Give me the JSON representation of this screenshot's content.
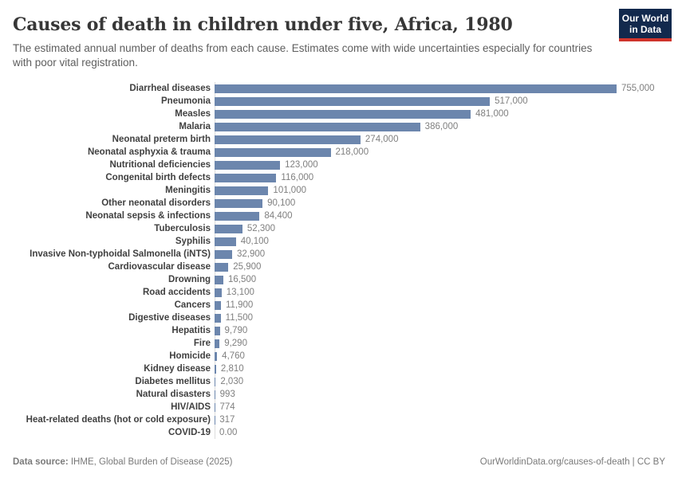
{
  "header": {
    "title": "Causes of death in children under five, Africa, 1980",
    "subtitle": "The estimated annual number of deaths from each cause. Estimates come with wide uncertainties especially for countries with poor vital registration."
  },
  "logo": {
    "line1": "Our World",
    "line2": "in Data",
    "bg_color": "#12294d",
    "accent_color": "#d0342c"
  },
  "chart_data": {
    "type": "bar",
    "orientation": "horizontal",
    "title": "Causes of death in children under five, Africa, 1980",
    "xlabel": "",
    "ylabel": "",
    "xlim": [
      0,
      755000
    ],
    "grid": false,
    "legend": false,
    "bar_color": "#6c86ad",
    "categories": [
      "Diarrheal diseases",
      "Pneumonia",
      "Measles",
      "Malaria",
      "Neonatal preterm birth",
      "Neonatal asphyxia & trauma",
      "Nutritional deficiencies",
      "Congenital birth defects",
      "Meningitis",
      "Other neonatal disorders",
      "Neonatal sepsis & infections",
      "Tuberculosis",
      "Syphilis",
      "Invasive Non-typhoidal Salmonella (iNTS)",
      "Cardiovascular disease",
      "Drowning",
      "Road accidents",
      "Cancers",
      "Digestive diseases",
      "Hepatitis",
      "Fire",
      "Homicide",
      "Kidney disease",
      "Diabetes mellitus",
      "Natural disasters",
      "HIV/AIDS",
      "Heat-related deaths (hot or cold exposure)",
      "COVID-19"
    ],
    "values": [
      755000,
      517000,
      481000,
      386000,
      274000,
      218000,
      123000,
      116000,
      101000,
      90100,
      84400,
      52300,
      40100,
      32900,
      25900,
      16500,
      13100,
      11900,
      11500,
      9790,
      9290,
      4760,
      2810,
      2030,
      993,
      774,
      317,
      0
    ],
    "value_labels": [
      "755,000",
      "517,000",
      "481,000",
      "386,000",
      "274,000",
      "218,000",
      "123,000",
      "116,000",
      "101,000",
      "90,100",
      "84,400",
      "52,300",
      "40,100",
      "32,900",
      "25,900",
      "16,500",
      "13,100",
      "11,900",
      "11,500",
      "9,790",
      "9,290",
      "4,760",
      "2,810",
      "2,030",
      "993",
      "774",
      "317",
      "0.00"
    ]
  },
  "footer": {
    "source_label": "Data source:",
    "source_value": " IHME, Global Burden of Disease (2025)",
    "citation": "OurWorldinData.org/causes-of-death | CC BY"
  }
}
